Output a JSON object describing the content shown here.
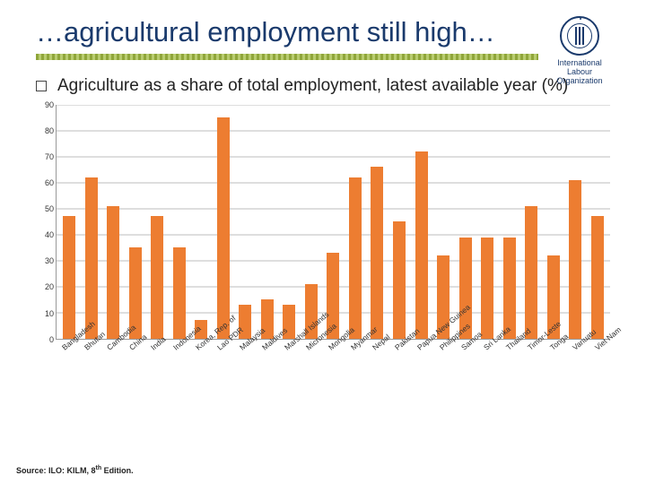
{
  "header": {
    "title": "…agricultural employment still high…",
    "logo_text": "International\nLabour\nOrganization"
  },
  "subtitle": "Agriculture as a share of total employment, latest available year (%)",
  "source_prefix": "Source: ILO: KILM, 8",
  "source_sup": "th",
  "source_suffix": " Edition.",
  "chart": {
    "type": "bar",
    "ylim": [
      0,
      90
    ],
    "ytick_step": 10,
    "bar_color": "#ed7d31",
    "grid_color": "#bdbdbd",
    "background_color": "#ffffff",
    "label_fontsize": 9,
    "xlabel_rotation": -40,
    "data": [
      {
        "label": "Bangladesh",
        "value": 47
      },
      {
        "label": "Bhutan",
        "value": 62
      },
      {
        "label": "Cambodia",
        "value": 51
      },
      {
        "label": "China",
        "value": 35
      },
      {
        "label": "India",
        "value": 47
      },
      {
        "label": "Indonesia",
        "value": 35
      },
      {
        "label": "Korea, Rep. of",
        "value": 7
      },
      {
        "label": "Lao PDR",
        "value": 85
      },
      {
        "label": "Malaysia",
        "value": 13
      },
      {
        "label": "Maldives",
        "value": 15
      },
      {
        "label": "Marshall Islands",
        "value": 13
      },
      {
        "label": "Micronesia",
        "value": 21
      },
      {
        "label": "Mongolia",
        "value": 33
      },
      {
        "label": "Myanmar",
        "value": 62
      },
      {
        "label": "Nepal",
        "value": 66
      },
      {
        "label": "Pakistan",
        "value": 45
      },
      {
        "label": "Papua New Guinea",
        "value": 72
      },
      {
        "label": "Philippines",
        "value": 32
      },
      {
        "label": "Samoa",
        "value": 39
      },
      {
        "label": "Sri Lanka",
        "value": 39
      },
      {
        "label": "Thailand",
        "value": 39
      },
      {
        "label": "Timor-Leste",
        "value": 51
      },
      {
        "label": "Tonga",
        "value": 32
      },
      {
        "label": "Vanuatu",
        "value": 61
      },
      {
        "label": "Viet Nam",
        "value": 47
      }
    ]
  }
}
